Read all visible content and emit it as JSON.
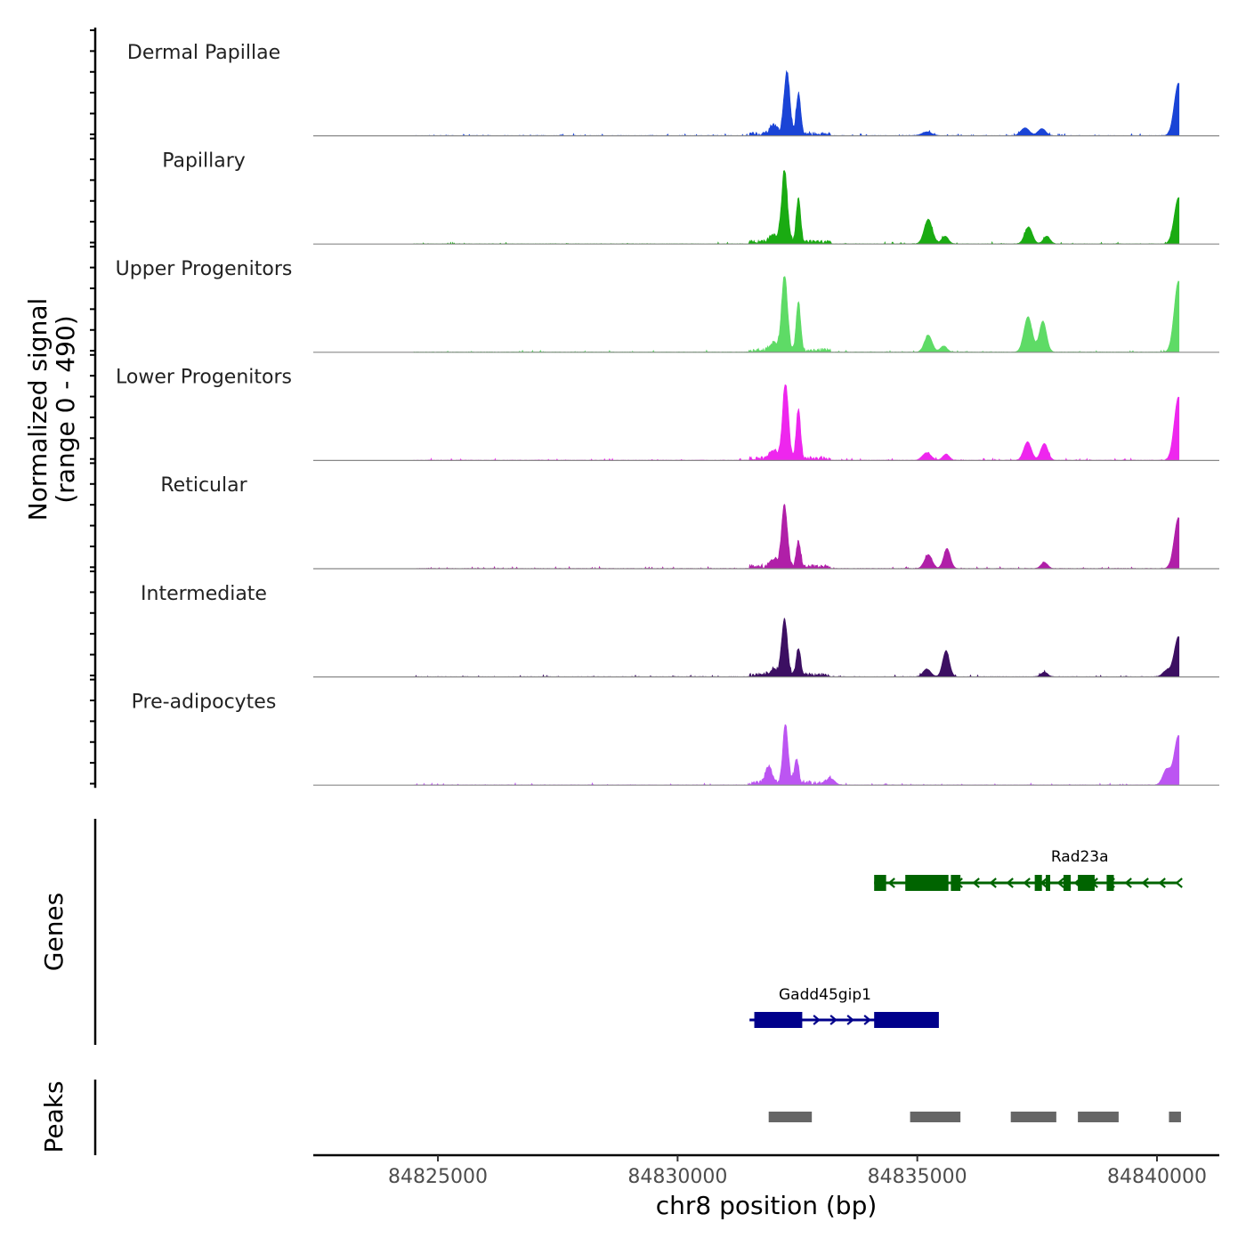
{
  "chart_data": {
    "type": "area",
    "title": "",
    "xlabel": "chr8 position (bp)",
    "ylabel_line1": "Normalized signal",
    "ylabel_line2": "(range 0 - 490)",
    "y_range": [
      0,
      490
    ],
    "xlim": [
      84822400,
      84841300
    ],
    "x_ticks": [
      84825000,
      84830000,
      84835000,
      84840000
    ],
    "x_tick_labels": [
      "84825000",
      "84830000",
      "84835000",
      "84840000"
    ],
    "baseline_color": "#888888",
    "tracks": [
      {
        "name": "Dermal Papillae",
        "color": "#1a44d6",
        "peaks": [
          [
            84832280,
            410,
            60
          ],
          [
            84832520,
            260,
            45
          ],
          [
            84832000,
            60,
            80
          ],
          [
            84840450,
            340,
            90
          ],
          [
            84837250,
            50,
            90
          ],
          [
            84837600,
            45,
            80
          ],
          [
            84835200,
            25,
            100
          ]
        ]
      },
      {
        "name": "Papillary",
        "color": "#1aab12",
        "peaks": [
          [
            84832230,
            470,
            60
          ],
          [
            84832520,
            280,
            45
          ],
          [
            84835230,
            160,
            85
          ],
          [
            84837320,
            110,
            80
          ],
          [
            84837700,
            50,
            70
          ],
          [
            84835580,
            50,
            70
          ],
          [
            84840450,
            300,
            90
          ],
          [
            84832000,
            50,
            80
          ]
        ]
      },
      {
        "name": "Upper Progenitors",
        "color": "#5edb66",
        "peaks": [
          [
            84832230,
            500,
            60
          ],
          [
            84832520,
            320,
            45
          ],
          [
            84835230,
            110,
            80
          ],
          [
            84837310,
            230,
            85
          ],
          [
            84837620,
            200,
            75
          ],
          [
            84840450,
            460,
            90
          ],
          [
            84832000,
            50,
            80
          ],
          [
            84835550,
            40,
            70
          ]
        ]
      },
      {
        "name": "Lower Progenitors",
        "color": "#ee26ee",
        "peaks": [
          [
            84832250,
            500,
            60
          ],
          [
            84832520,
            320,
            45
          ],
          [
            84837300,
            120,
            80
          ],
          [
            84837650,
            110,
            75
          ],
          [
            84835200,
            50,
            90
          ],
          [
            84835600,
            40,
            70
          ],
          [
            84840450,
            410,
            90
          ],
          [
            84832000,
            50,
            80
          ]
        ]
      },
      {
        "name": "Reticular",
        "color": "#b01fa8",
        "peaks": [
          [
            84832230,
            400,
            60
          ],
          [
            84832520,
            170,
            45
          ],
          [
            84835230,
            90,
            80
          ],
          [
            84835620,
            130,
            70
          ],
          [
            84837650,
            40,
            70
          ],
          [
            84840450,
            330,
            90
          ],
          [
            84832000,
            50,
            80
          ]
        ]
      },
      {
        "name": "Intermediate",
        "color": "#3c0f62",
        "peaks": [
          [
            84832230,
            360,
            60
          ],
          [
            84832520,
            180,
            45
          ],
          [
            84835600,
            170,
            70
          ],
          [
            84835200,
            50,
            80
          ],
          [
            84837650,
            30,
            70
          ],
          [
            84840450,
            260,
            90
          ],
          [
            84840200,
            40,
            80
          ],
          [
            84832000,
            40,
            80
          ]
        ]
      },
      {
        "name": "Pre-adipocytes",
        "color": "#bc55f2",
        "peaks": [
          [
            84832250,
            390,
            55
          ],
          [
            84832480,
            160,
            45
          ],
          [
            84831900,
            110,
            70
          ],
          [
            84840450,
            320,
            90
          ],
          [
            84840200,
            100,
            80
          ],
          [
            84833200,
            40,
            80
          ]
        ]
      }
    ],
    "genes_label": "Genes",
    "genes": [
      {
        "name": "Rad23a",
        "color": "#006400",
        "start": 84834100,
        "end": 84840450,
        "strand": "-",
        "exons": [
          [
            84834100,
            84834350
          ],
          [
            84834750,
            84835650
          ],
          [
            84835700,
            84835900
          ],
          [
            84837450,
            84837600
          ],
          [
            84837680,
            84837760
          ],
          [
            84838050,
            84838200
          ],
          [
            84838350,
            84838700
          ],
          [
            84838950,
            84839100
          ]
        ]
      },
      {
        "name": "Gadd45gip1",
        "color": "#00008b",
        "start": 84831500,
        "end": 84834650,
        "strand": "+",
        "exons": [
          [
            84831600,
            84832600
          ],
          [
            84834100,
            84835450
          ]
        ]
      }
    ],
    "peaks_label": "Peaks",
    "peak_color": "#666666",
    "peak_regions": [
      [
        84831900,
        84832800
      ],
      [
        84834850,
        84835900
      ],
      [
        84836950,
        84837900
      ],
      [
        84838350,
        84839200
      ],
      [
        84840250,
        84840500
      ]
    ]
  }
}
